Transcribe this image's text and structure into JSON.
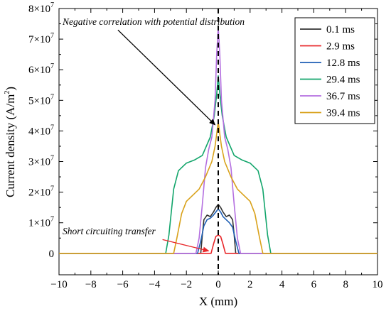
{
  "chart_data": {
    "type": "line",
    "title": "",
    "xlabel": "X (mm)",
    "ylabel": "Current density (A/m²)",
    "xlim": [
      -10,
      10
    ],
    "ylim": [
      -0.7,
      8
    ],
    "y_exponent_label": "7",
    "x_ticks": [
      -10,
      -8,
      -6,
      -4,
      -2,
      0,
      2,
      4,
      6,
      8,
      10
    ],
    "x_tick_labels": [
      "−10",
      "−8",
      "−6",
      "−4",
      "−2",
      "0",
      "2",
      "4",
      "6",
      "8",
      "10"
    ],
    "y_ticks": [
      0,
      1,
      2,
      3,
      4,
      5,
      6,
      7,
      8
    ],
    "y_tick_labels": [
      {
        "base": "0",
        "exp": ""
      },
      {
        "base": "1×10",
        "exp": "7"
      },
      {
        "base": "2×10",
        "exp": "7"
      },
      {
        "base": "3×10",
        "exp": "7"
      },
      {
        "base": "4×10",
        "exp": "7"
      },
      {
        "base": "5×10",
        "exp": "7"
      },
      {
        "base": "6×10",
        "exp": "7"
      },
      {
        "base": "7×10",
        "exp": "7"
      },
      {
        "base": "8×10",
        "exp": "7"
      }
    ],
    "y_unit_note": "values in units of 10^7 A/m^2",
    "center_line_x": 0,
    "legend_position": "top-right",
    "series": [
      {
        "name": "0.1 ms",
        "color": "#333333",
        "x": [
          -10,
          -1.1,
          -1.0,
          -0.9,
          -0.7,
          -0.5,
          -0.3,
          -0.15,
          0,
          0.15,
          0.3,
          0.5,
          0.7,
          0.9,
          1.0,
          1.1,
          10
        ],
        "y": [
          0,
          0,
          0.6,
          1.1,
          1.25,
          1.2,
          1.35,
          1.5,
          1.6,
          1.5,
          1.35,
          1.2,
          1.25,
          1.1,
          0.6,
          0,
          0
        ]
      },
      {
        "name": "2.9 ms",
        "color": "#e8272a",
        "x": [
          -10,
          -0.45,
          -0.3,
          -0.15,
          0,
          0.15,
          0.3,
          0.45,
          10
        ],
        "y": [
          0,
          0,
          0.3,
          0.55,
          0.6,
          0.55,
          0.3,
          0,
          0
        ]
      },
      {
        "name": "12.8 ms",
        "color": "#1f5fb4",
        "x": [
          -10,
          -1.3,
          -1.1,
          -0.9,
          -0.7,
          -0.5,
          -0.3,
          -0.15,
          0,
          0.15,
          0.3,
          0.5,
          0.7,
          0.9,
          1.1,
          1.3,
          10
        ],
        "y": [
          0,
          0,
          0.4,
          0.9,
          1.1,
          1.15,
          1.25,
          1.35,
          1.45,
          1.35,
          1.2,
          1.1,
          1.0,
          0.85,
          0.4,
          0,
          0
        ]
      },
      {
        "name": "29.4 ms",
        "color": "#12a56b",
        "x": [
          -10,
          -3.3,
          -3.1,
          -2.8,
          -2.5,
          -2.0,
          -1.5,
          -1.0,
          -0.5,
          -0.25,
          -0.1,
          0,
          0.1,
          0.25,
          0.5,
          1.0,
          1.5,
          2.0,
          2.5,
          2.8,
          3.1,
          3.3,
          10
        ],
        "y": [
          0,
          0,
          0.6,
          2.1,
          2.7,
          2.95,
          3.05,
          3.2,
          3.8,
          4.5,
          5.2,
          5.8,
          5.2,
          4.5,
          3.8,
          3.2,
          3.05,
          2.95,
          2.7,
          2.1,
          0.6,
          0,
          0
        ]
      },
      {
        "name": "36.7 ms",
        "color": "#b46fe0",
        "x": [
          -10,
          -1.4,
          -1.2,
          -1.0,
          -0.8,
          -0.6,
          -0.4,
          -0.2,
          -0.1,
          0,
          0.1,
          0.2,
          0.4,
          0.6,
          0.8,
          1.0,
          1.2,
          1.4,
          10
        ],
        "y": [
          0,
          0,
          0.5,
          1.6,
          2.8,
          3.4,
          3.8,
          5.0,
          6.5,
          7.4,
          6.5,
          5.0,
          3.8,
          3.4,
          2.8,
          1.6,
          0.5,
          0,
          0
        ]
      },
      {
        "name": "39.4 ms",
        "color": "#d9a21b",
        "x": [
          -10,
          -2.8,
          -2.6,
          -2.3,
          -2.0,
          -1.6,
          -1.2,
          -0.8,
          -0.4,
          -0.2,
          -0.1,
          0,
          0.1,
          0.2,
          0.4,
          0.8,
          1.2,
          1.6,
          2.0,
          2.3,
          2.6,
          2.8,
          10
        ],
        "y": [
          0,
          0,
          0.5,
          1.3,
          1.7,
          1.9,
          2.1,
          2.5,
          3.0,
          3.5,
          3.9,
          4.3,
          3.9,
          3.5,
          3.0,
          2.5,
          2.1,
          1.9,
          1.7,
          1.3,
          0.5,
          0,
          0
        ]
      }
    ],
    "annotations": [
      {
        "text": "Negative correlation with potential distribution",
        "arrow_from": [
          -6.3,
          7.3
        ],
        "arrow_to": [
          -0.2,
          4.2
        ],
        "color": "#000000"
      },
      {
        "text": "Short circuiting transfer",
        "arrow_from": [
          -3.5,
          0.45
        ],
        "arrow_to": [
          -0.6,
          0.08
        ],
        "color": "#e8272a"
      }
    ]
  }
}
